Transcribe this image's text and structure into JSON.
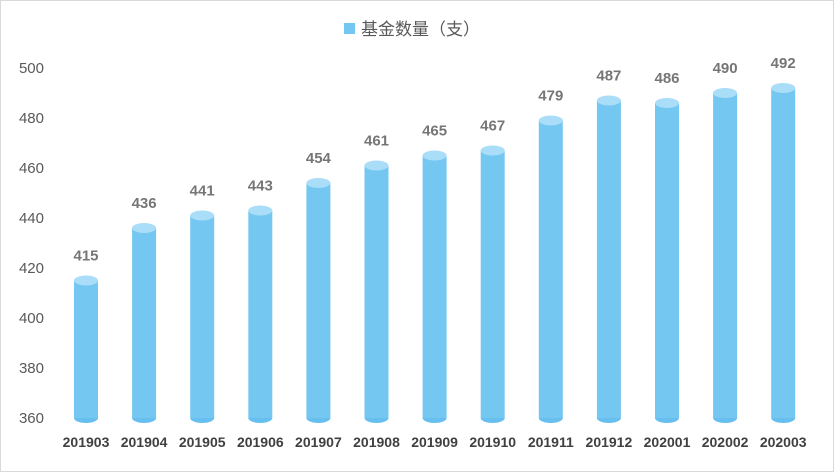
{
  "chart_data": {
    "type": "bar",
    "legend": [
      "基金数量（支）"
    ],
    "legend_position": "top",
    "categories": [
      "201903",
      "201904",
      "201905",
      "201906",
      "201907",
      "201908",
      "201909",
      "201910",
      "201911",
      "201912",
      "202001",
      "202002",
      "202003"
    ],
    "series": [
      {
        "name": "基金数量（支）",
        "values": [
          415,
          436,
          441,
          443,
          454,
          461,
          465,
          467,
          479,
          487,
          486,
          490,
          492
        ]
      }
    ],
    "ylim": [
      360,
      500
    ],
    "yticks": [
      360,
      380,
      400,
      420,
      440,
      460,
      480,
      500
    ],
    "grid": false,
    "bar_style": "cylinder",
    "colors": {
      "bar_body": "#74c7f1",
      "bar_top": "#a9ddf8",
      "bar_bottom": "#66bfee",
      "text": "#595959"
    }
  }
}
